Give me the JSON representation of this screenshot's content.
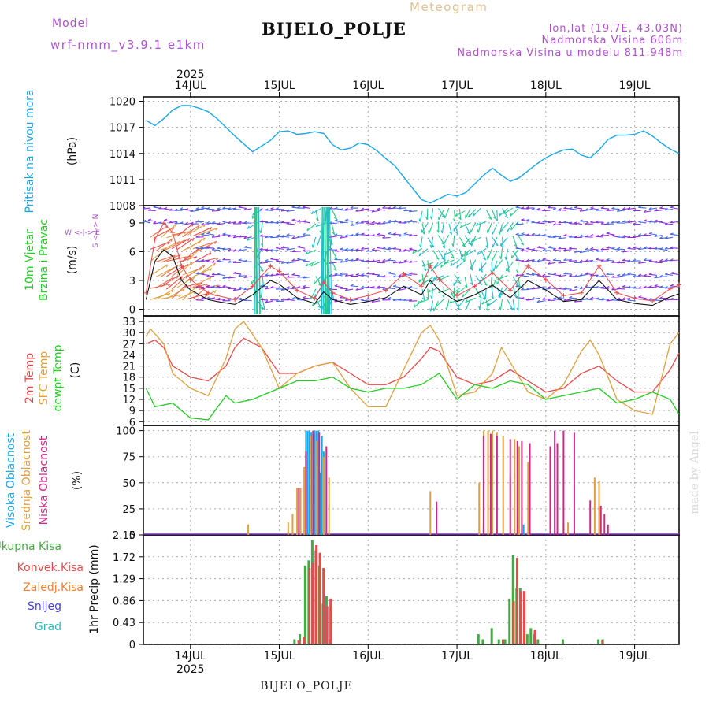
{
  "header": {
    "title": "BIJELO_POLJE",
    "subtitle": "Meteogram",
    "model_label": "Model",
    "model_name": "wrf-nmm_v3.9.1 e1km",
    "lonlat": "lon,lat (19.7E, 43.03N)",
    "elevation": "Nadmorska Visina 606m",
    "model_elevation": "Nadmorska Visina u modelu 811.948m",
    "footer_title": "BIJELO_POLJE",
    "credit": "made by Angel"
  },
  "colors": {
    "pressure": "#1aa7e8",
    "wind_label": "#22cc22",
    "temp2m": "#e84a4a",
    "sfc": "#e0a040",
    "dew": "#22cc22",
    "high_cloud": "#1aa7e8",
    "mid_cloud": "#e0a040",
    "low_cloud": "#cc2a8a",
    "total_precip": "#44aa44",
    "conv_precip": "#e84a4a",
    "frz_precip": "#f08030",
    "snow": "#4444dd",
    "hail": "#22bbbb",
    "purple_text": "#b050d0"
  },
  "chart_data": [
    {
      "type": "line",
      "panel": "pressure",
      "ylabel": "Pritisak na nivou mora",
      "yunit": "(hPa)",
      "ylim": [
        1008,
        1020.5
      ],
      "yticks": [
        1008,
        1011,
        1014,
        1017,
        1020
      ],
      "x_days": [
        13.5,
        13.6,
        13.7,
        13.8,
        13.9,
        14.0,
        14.1,
        14.2,
        14.3,
        14.5,
        14.7,
        14.9,
        15.0,
        15.1,
        15.2,
        15.3,
        15.4,
        15.5,
        15.6,
        15.7,
        15.8,
        15.9,
        16.0,
        16.1,
        16.2,
        16.3,
        16.4,
        16.5,
        16.6,
        16.7,
        16.8,
        16.9,
        17.0,
        17.1,
        17.2,
        17.3,
        17.4,
        17.5,
        17.6,
        17.7,
        17.8,
        17.9,
        18.0,
        18.1,
        18.2,
        18.3,
        18.4,
        18.5,
        18.6,
        18.7,
        18.8,
        18.9,
        19.0,
        19.1,
        19.2,
        19.3,
        19.4,
        19.5
      ],
      "values": [
        1017.8,
        1017.2,
        1018,
        1019,
        1019.5,
        1019.5,
        1019.2,
        1018.8,
        1018,
        1016,
        1014.2,
        1015.5,
        1016.5,
        1016.6,
        1016.2,
        1016.3,
        1016.5,
        1016.3,
        1015,
        1014.4,
        1014.6,
        1015.2,
        1015.0,
        1014.3,
        1013.4,
        1012.6,
        1011.3,
        1010,
        1008.7,
        1008.3,
        1008.8,
        1009.3,
        1009.1,
        1009.5,
        1010.5,
        1011.5,
        1012.3,
        1011.5,
        1010.8,
        1011.2,
        1012,
        1012.8,
        1013.5,
        1014.0,
        1014.4,
        1014.5,
        1013.8,
        1013.5,
        1014.4,
        1015.6,
        1016.1,
        1016.1,
        1016.2,
        1016.6,
        1016.0,
        1015.2,
        1014.5,
        1014.0
      ]
    },
    {
      "type": "line",
      "panel": "wind",
      "ylabel": [
        "10m Vjetar",
        "Brzina i Pravac"
      ],
      "yunit": "(m/s)",
      "compass": "W <-|-> E",
      "compass_v": "S <-|-> N",
      "ylim": [
        -0.7,
        10.8
      ],
      "yticks": [
        0,
        3,
        6,
        9
      ],
      "x_days": [
        13.5,
        13.6,
        13.7,
        13.8,
        13.9,
        14.0,
        14.1,
        14.2,
        14.3,
        14.5,
        14.7,
        14.9,
        15.0,
        15.2,
        15.4,
        15.5,
        15.6,
        15.8,
        16.0,
        16.2,
        16.4,
        16.6,
        16.7,
        16.8,
        17.0,
        17.2,
        17.4,
        17.6,
        17.8,
        18.0,
        18.2,
        18.4,
        18.6,
        18.8,
        19.0,
        19.2,
        19.4,
        19.5
      ],
      "values": [
        1,
        5,
        6.2,
        5.5,
        3,
        2,
        1.5,
        1,
        0.8,
        0.5,
        1.5,
        3,
        2.6,
        1.2,
        0.6,
        1.8,
        1,
        0.5,
        0.8,
        1.2,
        2.4,
        1.5,
        3,
        2,
        0.8,
        1.5,
        2.5,
        1.2,
        3,
        2,
        0.8,
        1,
        3,
        1,
        0.6,
        0.4,
        1.3,
        1.6
      ]
    },
    {
      "type": "line",
      "panel": "temperature",
      "ylabel": [
        "2m Temp",
        "SFC Temp",
        "dewpt Temp"
      ],
      "yunit": "(C)",
      "ylim": [
        5,
        34.5
      ],
      "yticks": [
        6,
        9,
        12,
        15,
        18,
        21,
        24,
        27,
        30,
        33
      ],
      "series": [
        {
          "name": "2m Temp",
          "x_days": [
            13.5,
            13.6,
            13.7,
            13.8,
            14.0,
            14.2,
            14.4,
            14.5,
            14.6,
            14.8,
            15.0,
            15.2,
            15.4,
            15.6,
            15.8,
            16.0,
            16.2,
            16.4,
            16.6,
            16.7,
            16.8,
            17.0,
            17.2,
            17.4,
            17.6,
            17.8,
            18.0,
            18.2,
            18.4,
            18.6,
            18.8,
            19.0,
            19.2,
            19.4,
            19.5
          ],
          "values": [
            27,
            28,
            26,
            21,
            18,
            17,
            21,
            26,
            28.5,
            26,
            19,
            19,
            21,
            22,
            19,
            16,
            16,
            18,
            23,
            26,
            25,
            18,
            16,
            17,
            20,
            17,
            14,
            15,
            19,
            21,
            17,
            14,
            14,
            20,
            24.5
          ]
        },
        {
          "name": "SFC Temp",
          "x_days": [
            13.5,
            13.55,
            13.7,
            13.8,
            14.0,
            14.2,
            14.4,
            14.5,
            14.6,
            14.8,
            15.0,
            15.2,
            15.4,
            15.6,
            15.8,
            16.0,
            16.2,
            16.4,
            16.6,
            16.7,
            16.8,
            17.0,
            17.2,
            17.4,
            17.5,
            17.6,
            17.8,
            18.0,
            18.2,
            18.4,
            18.5,
            18.6,
            18.8,
            19.0,
            19.2,
            19.4,
            19.5
          ],
          "values": [
            29,
            31,
            27,
            19,
            15,
            13,
            23,
            31,
            33,
            26,
            15,
            19,
            21,
            22,
            15,
            10,
            10,
            20,
            30,
            32,
            28,
            13,
            14,
            19,
            26,
            22,
            14,
            12,
            16,
            25,
            28,
            24,
            12,
            9,
            8,
            27,
            30
          ]
        },
        {
          "name": "dewpt Temp",
          "x_days": [
            13.5,
            13.6,
            13.8,
            14.0,
            14.2,
            14.4,
            14.5,
            14.7,
            15.0,
            15.2,
            15.4,
            15.6,
            15.8,
            16.0,
            16.2,
            16.4,
            16.6,
            16.8,
            17.0,
            17.2,
            17.4,
            17.6,
            17.8,
            18.0,
            18.2,
            18.4,
            18.6,
            18.8,
            19.0,
            19.2,
            19.4,
            19.5
          ],
          "values": [
            15,
            10,
            11,
            7,
            6.5,
            13,
            11,
            12,
            15,
            17,
            17,
            18,
            15,
            14,
            15,
            15,
            16,
            19,
            12,
            16,
            15,
            17,
            16,
            12,
            13,
            14,
            15,
            11,
            12,
            14,
            12,
            8
          ]
        }
      ]
    },
    {
      "type": "bar",
      "panel": "clouds",
      "ylabel": [
        "Visoka Oblacnost",
        "Srednja Oblacnost",
        "Niska Oblacnost"
      ],
      "yunit": "(%)",
      "ylim": [
        0,
        105
      ],
      "yticks": [
        0,
        25,
        50,
        75,
        100
      ],
      "series": [
        {
          "name": "Visoka Oblacnost",
          "x_days": [
            15.3,
            15.32,
            15.34,
            15.36,
            15.38,
            15.4,
            15.42,
            15.44,
            15.46,
            15.48,
            15.5,
            17.3,
            17.7,
            17.75
          ],
          "values": [
            100,
            100,
            100,
            98,
            100,
            100,
            100,
            100,
            60,
            95,
            80,
            8,
            15,
            10
          ]
        },
        {
          "name": "Srednja Oblacnost",
          "x_days": [
            14.65,
            15.1,
            15.15,
            15.2,
            15.24,
            15.28,
            15.35,
            15.42,
            15.5,
            15.56,
            16.7,
            17.25,
            17.3,
            17.35,
            17.4,
            17.45,
            17.52,
            17.6,
            17.65,
            17.7,
            17.8,
            18.2,
            18.25,
            18.55,
            18.6
          ],
          "values": [
            10,
            12,
            20,
            45,
            45,
            65,
            95,
            90,
            75,
            55,
            42,
            50,
            100,
            100,
            100,
            98,
            95,
            55,
            92,
            85,
            70,
            12,
            12,
            55,
            52
          ]
        },
        {
          "name": "Niska Oblacnost",
          "x_days": [
            15.22,
            15.3,
            15.38,
            15.45,
            15.53,
            16.77,
            17.3,
            17.38,
            17.45,
            17.6,
            17.68,
            17.73,
            17.82,
            18.05,
            18.1,
            18.13,
            18.2,
            18.32,
            18.5,
            18.62,
            18.66,
            18.7
          ],
          "values": [
            45,
            80,
            100,
            98,
            85,
            32,
            95,
            97,
            95,
            92,
            90,
            90,
            88,
            85,
            100,
            88,
            100,
            98,
            33,
            28,
            20,
            10
          ]
        }
      ]
    },
    {
      "type": "bar",
      "panel": "precip",
      "ylabel": [
        "Ukupna Kisa",
        "Konvek.Kisa",
        "Zaledj.Kisa",
        "Snijeg",
        "Grad"
      ],
      "yunit": "1hr Precip (mm)",
      "ylim": [
        0,
        2.15
      ],
      "yticks": [
        0,
        0.43,
        0.86,
        1.29,
        1.72,
        2.15
      ],
      "series": [
        {
          "name": "Ukupna Kisa",
          "x_days": [
            15.18,
            15.24,
            15.3,
            15.34,
            15.38,
            15.42,
            15.46,
            15.5,
            15.54,
            15.58,
            17.25,
            17.3,
            17.4,
            17.48,
            17.55,
            17.6,
            17.64,
            17.68,
            17.72,
            17.8,
            17.84,
            17.88,
            17.92,
            18.2,
            18.6,
            18.65
          ],
          "values": [
            0.1,
            0.2,
            1.55,
            1.65,
            2.05,
            1.85,
            1.55,
            0.8,
            0.95,
            0.1,
            0.2,
            0.1,
            0.32,
            0.1,
            0.1,
            0.9,
            1.75,
            1.1,
            1.1,
            0.2,
            0.32,
            0.2,
            0.1,
            0.1,
            0.1,
            0.1
          ]
        },
        {
          "name": "Konvek.Kisa",
          "x_days": [
            15.2,
            15.26,
            15.32,
            15.36,
            15.4,
            15.44,
            15.48,
            15.52,
            15.56,
            17.5,
            17.62,
            17.66,
            17.7,
            17.74,
            17.86,
            18.62
          ],
          "values": [
            0.08,
            0.15,
            1.5,
            1.6,
            1.95,
            1.8,
            1.5,
            0.75,
            0.9,
            0.1,
            0.85,
            1.7,
            1.05,
            1.05,
            0.28,
            0.08
          ]
        }
      ]
    }
  ],
  "x_axis": {
    "year": "2025",
    "days": [
      "14JUL",
      "15JUL",
      "16JUL",
      "17JUL",
      "18JUL",
      "19JUL"
    ]
  }
}
